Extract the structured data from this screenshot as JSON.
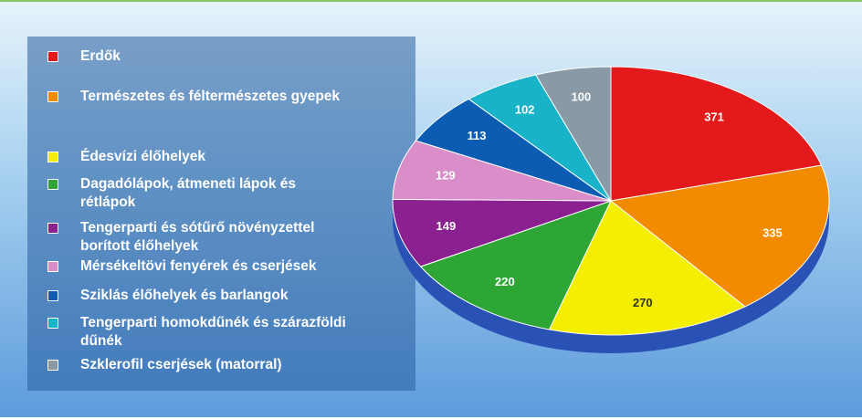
{
  "chart_data": {
    "type": "pie",
    "categories": [
      "Erdők",
      "Természetes és féltermészetes gyepek",
      "Édesvízi élőhelyek",
      "Dagadólápok, átmeneti lápok és rétlápok",
      "Tengerparti és sótűrő növényzettel borított élőhelyek",
      "Mérsékeltövi fenyérek és cserjések",
      "Sziklás élőhelyek és barlangok",
      "Tengerparti homokdűnék és szárazföldi dűnék",
      "Szklerofil cserjések (matorral)"
    ],
    "values": [
      371,
      335,
      270,
      220,
      149,
      129,
      113,
      102,
      100
    ],
    "colors": [
      "#e3191c",
      "#f38b00",
      "#f4ee00",
      "#2ea636",
      "#8b2190",
      "#d98dc9",
      "#0b5cb2",
      "#19b3c9",
      "#8999a6"
    ],
    "legend": "left"
  }
}
